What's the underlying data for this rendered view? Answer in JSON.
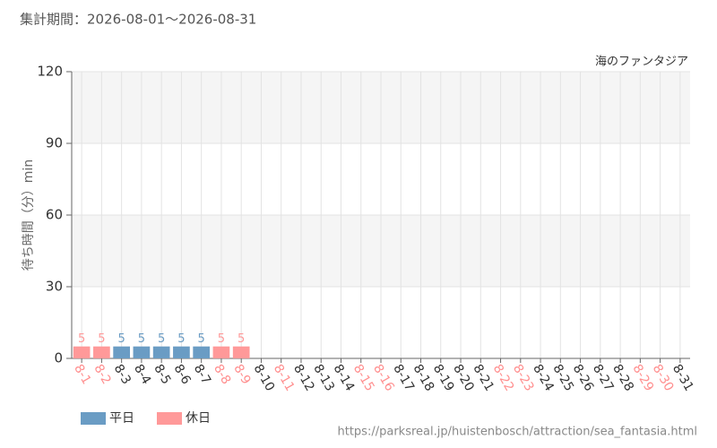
{
  "chart_data": {
    "type": "bar",
    "period": "集計期間：2026-08-01～2026-08-31",
    "subtitle": "海のファンタジア",
    "y_label": "待ち時間（分）min",
    "source": "https://parksreal.jp/huistenbosch/attraction/sea_fantasia.html",
    "categories": [
      "8-1",
      "8-2",
      "8-3",
      "8-4",
      "8-5",
      "8-6",
      "8-7",
      "8-8",
      "8-9",
      "8-10",
      "8-11",
      "8-12",
      "8-13",
      "8-14",
      "8-15",
      "8-16",
      "8-17",
      "8-18",
      "8-19",
      "8-20",
      "8-21",
      "8-22",
      "8-23",
      "8-24",
      "8-25",
      "8-26",
      "8-27",
      "8-28",
      "8-29",
      "8-30",
      "8-31"
    ],
    "label_colors": [
      "#ff8f8f",
      "#ff8f8f",
      "#333333",
      "#333333",
      "#333333",
      "#333333",
      "#333333",
      "#ff8f8f",
      "#ff8f8f",
      "#333333",
      "#ff8f8f",
      "#333333",
      "#333333",
      "#333333",
      "#ff8f8f",
      "#ff8f8f",
      "#333333",
      "#333333",
      "#333333",
      "#333333",
      "#333333",
      "#ff8f8f",
      "#ff8f8f",
      "#333333",
      "#333333",
      "#333333",
      "#333333",
      "#333333",
      "#ff8f8f",
      "#ff8f8f",
      "#333333"
    ],
    "series": [
      {
        "name": "平日",
        "color": "#6a9cc4",
        "values": [
          null,
          null,
          5,
          5,
          5,
          5,
          5,
          null,
          null,
          null,
          null,
          null,
          null,
          null,
          null,
          null,
          null,
          null,
          null,
          null,
          null,
          null,
          null,
          null,
          null,
          null,
          null,
          null,
          null,
          null,
          null
        ]
      },
      {
        "name": "休日",
        "color": "#ff9999",
        "values": [
          5,
          5,
          null,
          null,
          null,
          null,
          null,
          5,
          5,
          null,
          null,
          null,
          null,
          null,
          null,
          null,
          null,
          null,
          null,
          null,
          null,
          null,
          null,
          null,
          null,
          null,
          null,
          null,
          null,
          null,
          null
        ]
      }
    ],
    "ylim": [
      0,
      120
    ],
    "yticks": [
      0,
      30,
      60,
      90,
      120
    ],
    "grid": true
  }
}
